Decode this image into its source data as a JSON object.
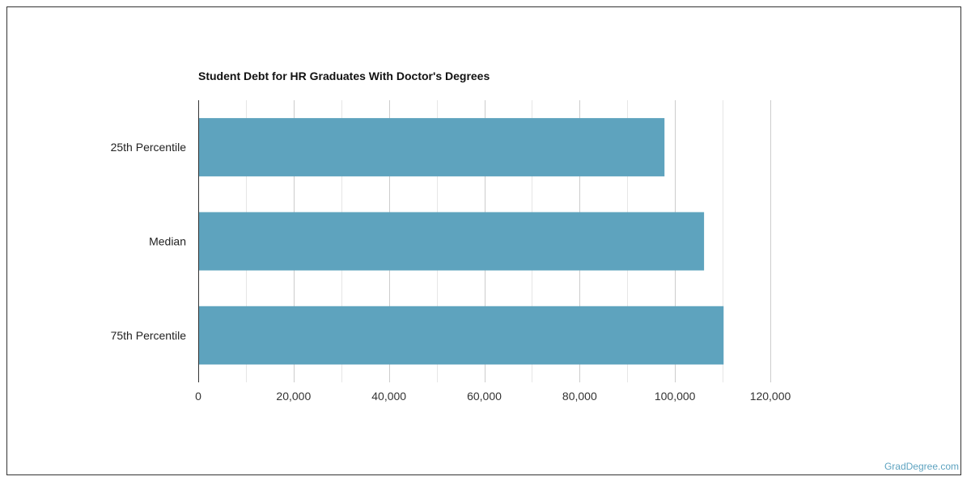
{
  "chart_data": {
    "type": "bar",
    "orientation": "horizontal",
    "title": "Student Debt for HR Graduates With Doctor's Degrees",
    "xlabel": "",
    "ylabel": "",
    "categories": [
      "25th Percentile",
      "Median",
      "75th Percentile"
    ],
    "values": [
      97800,
      106100,
      110200
    ],
    "xlim": [
      0,
      120000
    ],
    "xticks": [
      0,
      20000,
      40000,
      60000,
      80000,
      100000,
      120000
    ],
    "xtick_labels": [
      "0",
      "20,000",
      "40,000",
      "60,000",
      "80,000",
      "100,000",
      "120,000"
    ],
    "grid": true,
    "bar_color": "#5ea3be"
  },
  "footer": {
    "watermark": "GradDegree.com"
  }
}
